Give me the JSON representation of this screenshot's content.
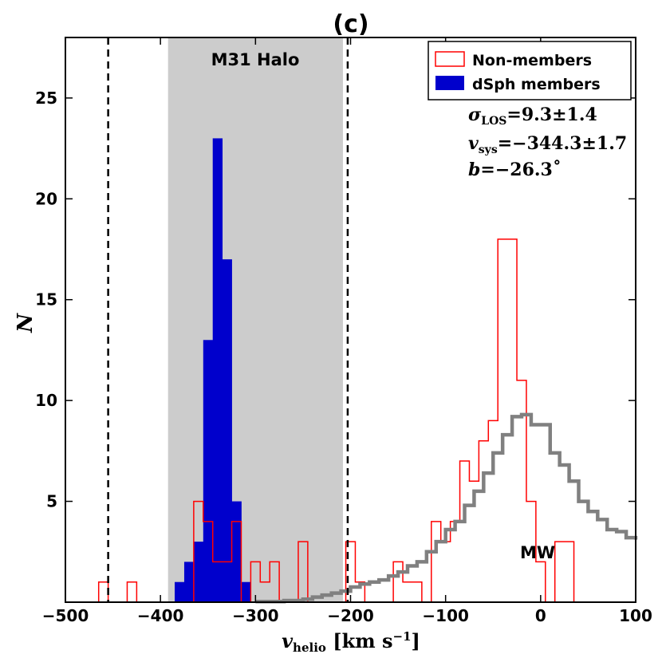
{
  "chart_data": {
    "type": "histogram",
    "title": "(c)",
    "xlabel_main": "v",
    "xlabel_sub": "helio",
    "xlabel_units": " [km s",
    "xlabel_exp": "−1",
    "xlabel_close": "]",
    "ylabel": "N",
    "xlim": [
      -500,
      100
    ],
    "ylim": [
      0,
      28
    ],
    "x_ticks": [
      -500,
      -400,
      -300,
      -200,
      -100,
      0,
      100
    ],
    "x_tick_labels": [
      "−500",
      "−400",
      "−300",
      "−200",
      "−100",
      "0",
      "100"
    ],
    "y_ticks": [
      5,
      10,
      15,
      20,
      25
    ],
    "y_tick_labels": [
      "5",
      "10",
      "15",
      "20",
      "25"
    ],
    "halo_region": {
      "x0": -392,
      "x1": -208,
      "label": "M31 Halo",
      "color": "#cccccc"
    },
    "dashed_lines": [
      -455,
      -203
    ],
    "region_label_mw": "MW",
    "legend": {
      "non_members_label": "Non-members",
      "members_label": "dSph members",
      "non_members_color": "#ff0000",
      "members_color": "#0000cc"
    },
    "stats": {
      "sigma_sym": "σ",
      "sigma_sub": "LOS",
      "sigma_val": "=9.3±1.4",
      "v_sym": "v",
      "v_sub": "sys",
      "v_val": "=−344.3±1.7",
      "b_sym": "b",
      "b_val": "=−26.3˚"
    },
    "bin_width": 10,
    "members": {
      "name": "dSph members",
      "bin_starts": [
        -385,
        -375,
        -365,
        -355,
        -345,
        -335,
        -325,
        -315
      ],
      "counts": [
        1,
        2,
        3,
        13,
        23,
        17,
        5,
        1
      ]
    },
    "non_members": {
      "name": "Non-members",
      "edges": [
        -465,
        -455,
        -435,
        -425,
        -365,
        -355,
        -345,
        -325,
        -315,
        -305,
        -295,
        -285,
        -275,
        -265,
        -255,
        -245,
        -205,
        -195,
        -185,
        -155,
        -145,
        -125,
        -115,
        -105,
        -95,
        -85,
        -75,
        -65,
        -55,
        -45,
        -25,
        -15,
        -5,
        5,
        15,
        25,
        35
      ],
      "counts": [
        1,
        0,
        1,
        0,
        5,
        4,
        2,
        4,
        0,
        2,
        1,
        2,
        0,
        0,
        3,
        0,
        3,
        1,
        0,
        2,
        1,
        0,
        4,
        3,
        4,
        7,
        6,
        8,
        9,
        18,
        11,
        5,
        2,
        0,
        3,
        3
      ]
    },
    "mw_model": {
      "name": "MW model",
      "color": "#808080",
      "x": [
        -300,
        -270,
        -250,
        -240,
        -230,
        -220,
        -210,
        -200,
        -190,
        -180,
        -170,
        -160,
        -150,
        -140,
        -130,
        -120,
        -110,
        -100,
        -90,
        -80,
        -70,
        -60,
        -50,
        -40,
        -30,
        -20,
        -10,
        0,
        10,
        20,
        30,
        40,
        50,
        60,
        70,
        80,
        90,
        100
      ],
      "y": [
        0.03,
        0.08,
        0.15,
        0.25,
        0.35,
        0.45,
        0.55,
        0.75,
        0.9,
        1.0,
        1.1,
        1.3,
        1.5,
        1.8,
        2.0,
        2.5,
        3.0,
        3.6,
        4.0,
        4.8,
        5.5,
        6.4,
        7.4,
        8.3,
        9.2,
        9.3,
        8.8,
        8.8,
        7.4,
        6.8,
        6.0,
        5.0,
        4.5,
        4.1,
        3.6,
        3.5,
        3.2,
        3.1
      ]
    }
  }
}
